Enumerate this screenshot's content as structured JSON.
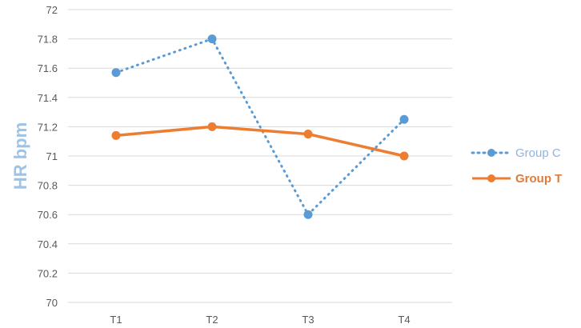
{
  "chart_data": {
    "type": "line",
    "title": "",
    "xlabel": "",
    "ylabel": "HR bpm",
    "categories": [
      "T1",
      "T2",
      "T3",
      "T4"
    ],
    "ylim": [
      70,
      72
    ],
    "yticks": [
      "70",
      "70.2",
      "70.4",
      "70.6",
      "70.8",
      "71",
      "71.2",
      "71.4",
      "71.6",
      "71.8",
      "72"
    ],
    "grid": true,
    "legend_position": "right",
    "series": [
      {
        "name": "Group C",
        "values": [
          71.57,
          71.8,
          70.6,
          71.25
        ],
        "color": "#5b9bd5",
        "style": "dotted"
      },
      {
        "name": "Group T",
        "values": [
          71.14,
          71.2,
          71.15,
          71.0
        ],
        "color": "#ed7d31",
        "style": "solid"
      }
    ]
  }
}
